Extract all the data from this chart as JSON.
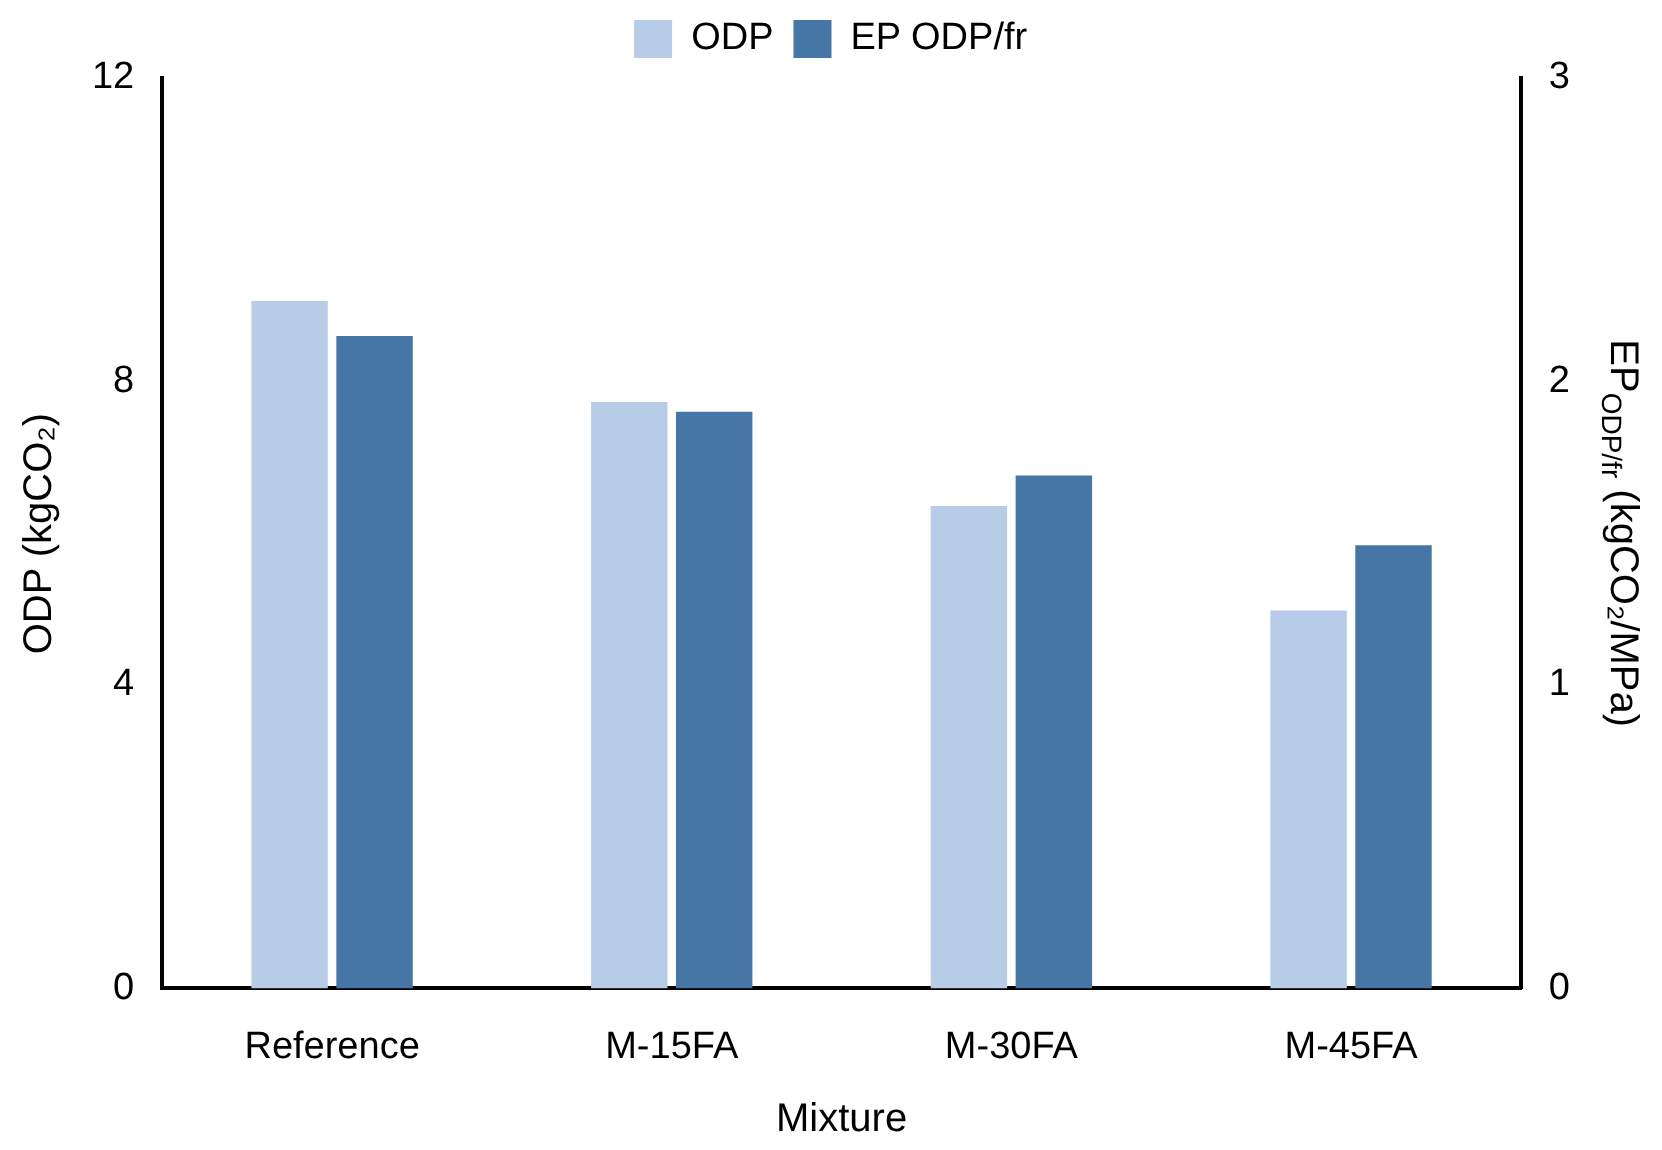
{
  "chart_data": {
    "type": "bar",
    "xlabel": "Mixture",
    "ylabel": "ODP (kgCO₂)",
    "y2label": "EP$_{ODP/fr}$ (kgCO₂/MPa)",
    "categories": [
      "Reference",
      "M-15FA",
      "M-30FA",
      "M-45FA"
    ],
    "series": [
      {
        "name": "ODP",
        "color": "#b7cce6",
        "values": [
          9.06,
          7.73,
          6.36,
          4.98
        ]
      },
      {
        "name": "EP ODP/fr",
        "color": "#4676a6",
        "values": [
          2.15,
          1.9,
          1.69,
          1.46
        ],
        "axis": "y2"
      }
    ],
    "ylim": [
      0,
      12
    ],
    "yticks": [
      0,
      4,
      8,
      12
    ],
    "y2lim": [
      0,
      3
    ],
    "y2ticks": [
      0,
      1,
      2,
      3
    ],
    "grid": false,
    "legend": "top"
  }
}
